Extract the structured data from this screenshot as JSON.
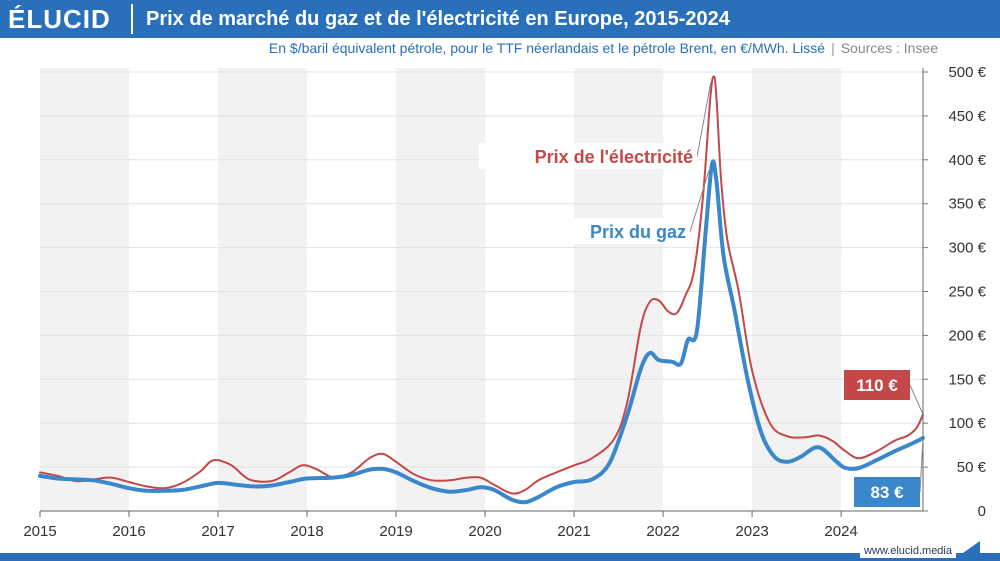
{
  "header": {
    "brand": "ÉLUCID",
    "title": "Prix de marché du gaz et de l'électricité en Europe, 2015-2024",
    "subtitle": "En $/baril équivalent pétrole, pour le TTF néerlandais et le pétrole Brent, en €/MWh. Lissé",
    "separator": "|",
    "source": "Sources : Insee"
  },
  "footer": {
    "url": "www.elucid.media"
  },
  "colors": {
    "gas": "#3a87cc",
    "electricity": "#c44848",
    "brand": "#2a6fba"
  },
  "chart_data": {
    "type": "line",
    "x_range": [
      2015,
      2024.92
    ],
    "ylim": [
      0,
      500
    ],
    "yticks": [
      0,
      50,
      100,
      150,
      200,
      250,
      300,
      350,
      400,
      450,
      500
    ],
    "ytick_labels": [
      "0",
      "50 €",
      "100 €",
      "150 €",
      "200 €",
      "250 €",
      "300 €",
      "350 €",
      "400 €",
      "450 €",
      "500 €"
    ],
    "xticks": [
      2015,
      2016,
      2017,
      2018,
      2019,
      2020,
      2021,
      2022,
      2023,
      2024
    ],
    "xtick_labels": [
      "2015",
      "2016",
      "2017",
      "2018",
      "2019",
      "2020",
      "2021",
      "2022",
      "2023",
      "2024"
    ],
    "grid": true,
    "alternating_year_bands": true,
    "y_axis_position": "right",
    "series": [
      {
        "name": "Prix de l'électricité",
        "key": "electricity",
        "color": "#c44848",
        "end_label": "110 €",
        "points": [
          [
            2015.0,
            44
          ],
          [
            2015.2,
            40
          ],
          [
            2015.4,
            34
          ],
          [
            2015.6,
            36
          ],
          [
            2015.8,
            38
          ],
          [
            2016.0,
            33
          ],
          [
            2016.2,
            28
          ],
          [
            2016.4,
            26
          ],
          [
            2016.6,
            32
          ],
          [
            2016.8,
            45
          ],
          [
            2016.95,
            58
          ],
          [
            2017.15,
            52
          ],
          [
            2017.35,
            36
          ],
          [
            2017.6,
            34
          ],
          [
            2017.8,
            44
          ],
          [
            2017.95,
            52
          ],
          [
            2018.1,
            48
          ],
          [
            2018.3,
            38
          ],
          [
            2018.5,
            44
          ],
          [
            2018.7,
            60
          ],
          [
            2018.85,
            65
          ],
          [
            2019.0,
            56
          ],
          [
            2019.2,
            42
          ],
          [
            2019.4,
            35
          ],
          [
            2019.6,
            35
          ],
          [
            2019.8,
            38
          ],
          [
            2019.95,
            38
          ],
          [
            2020.1,
            30
          ],
          [
            2020.3,
            20
          ],
          [
            2020.45,
            24
          ],
          [
            2020.6,
            35
          ],
          [
            2020.8,
            44
          ],
          [
            2021.0,
            52
          ],
          [
            2021.2,
            60
          ],
          [
            2021.45,
            82
          ],
          [
            2021.6,
            125
          ],
          [
            2021.75,
            210
          ],
          [
            2021.85,
            238
          ],
          [
            2021.95,
            240
          ],
          [
            2022.05,
            228
          ],
          [
            2022.15,
            225
          ],
          [
            2022.25,
            245
          ],
          [
            2022.35,
            275
          ],
          [
            2022.45,
            360
          ],
          [
            2022.53,
            470
          ],
          [
            2022.57,
            495
          ],
          [
            2022.6,
            470
          ],
          [
            2022.65,
            380
          ],
          [
            2022.72,
            310
          ],
          [
            2022.85,
            250
          ],
          [
            2023.0,
            160
          ],
          [
            2023.2,
            100
          ],
          [
            2023.4,
            85
          ],
          [
            2023.6,
            84
          ],
          [
            2023.75,
            86
          ],
          [
            2023.9,
            80
          ],
          [
            2024.05,
            68
          ],
          [
            2024.2,
            60
          ],
          [
            2024.4,
            68
          ],
          [
            2024.6,
            80
          ],
          [
            2024.75,
            86
          ],
          [
            2024.85,
            95
          ],
          [
            2024.92,
            110
          ]
        ]
      },
      {
        "name": "Prix du gaz",
        "key": "gas",
        "color": "#3a87cc",
        "end_label": "83 €",
        "points": [
          [
            2015.0,
            40
          ],
          [
            2015.2,
            37
          ],
          [
            2015.4,
            36
          ],
          [
            2015.6,
            35
          ],
          [
            2015.8,
            31
          ],
          [
            2016.0,
            26
          ],
          [
            2016.2,
            23
          ],
          [
            2016.4,
            23
          ],
          [
            2016.6,
            24
          ],
          [
            2016.8,
            28
          ],
          [
            2017.0,
            32
          ],
          [
            2017.2,
            30
          ],
          [
            2017.4,
            28
          ],
          [
            2017.6,
            29
          ],
          [
            2017.8,
            33
          ],
          [
            2018.0,
            37
          ],
          [
            2018.3,
            38
          ],
          [
            2018.5,
            41
          ],
          [
            2018.7,
            47
          ],
          [
            2018.85,
            48
          ],
          [
            2019.0,
            44
          ],
          [
            2019.2,
            34
          ],
          [
            2019.4,
            26
          ],
          [
            2019.6,
            22
          ],
          [
            2019.8,
            24
          ],
          [
            2019.95,
            27
          ],
          [
            2020.1,
            24
          ],
          [
            2020.3,
            13
          ],
          [
            2020.45,
            10
          ],
          [
            2020.6,
            16
          ],
          [
            2020.8,
            27
          ],
          [
            2021.0,
            33
          ],
          [
            2021.2,
            36
          ],
          [
            2021.4,
            55
          ],
          [
            2021.6,
            110
          ],
          [
            2021.75,
            162
          ],
          [
            2021.85,
            180
          ],
          [
            2021.95,
            172
          ],
          [
            2022.1,
            170
          ],
          [
            2022.2,
            168
          ],
          [
            2022.28,
            195
          ],
          [
            2022.38,
            205
          ],
          [
            2022.48,
            320
          ],
          [
            2022.55,
            395
          ],
          [
            2022.6,
            375
          ],
          [
            2022.68,
            290
          ],
          [
            2022.8,
            230
          ],
          [
            2022.95,
            150
          ],
          [
            2023.1,
            90
          ],
          [
            2023.25,
            62
          ],
          [
            2023.4,
            56
          ],
          [
            2023.55,
            62
          ],
          [
            2023.7,
            72
          ],
          [
            2023.8,
            70
          ],
          [
            2023.95,
            56
          ],
          [
            2024.05,
            49
          ],
          [
            2024.2,
            49
          ],
          [
            2024.4,
            58
          ],
          [
            2024.6,
            68
          ],
          [
            2024.8,
            77
          ],
          [
            2024.92,
            83
          ]
        ]
      }
    ],
    "annotations": [
      {
        "text": "Prix de l'électricité",
        "series": "electricity",
        "x": 2022.57,
        "y": 495
      },
      {
        "text": "Prix du gaz",
        "series": "gas",
        "x": 2022.55,
        "y": 395
      }
    ]
  }
}
